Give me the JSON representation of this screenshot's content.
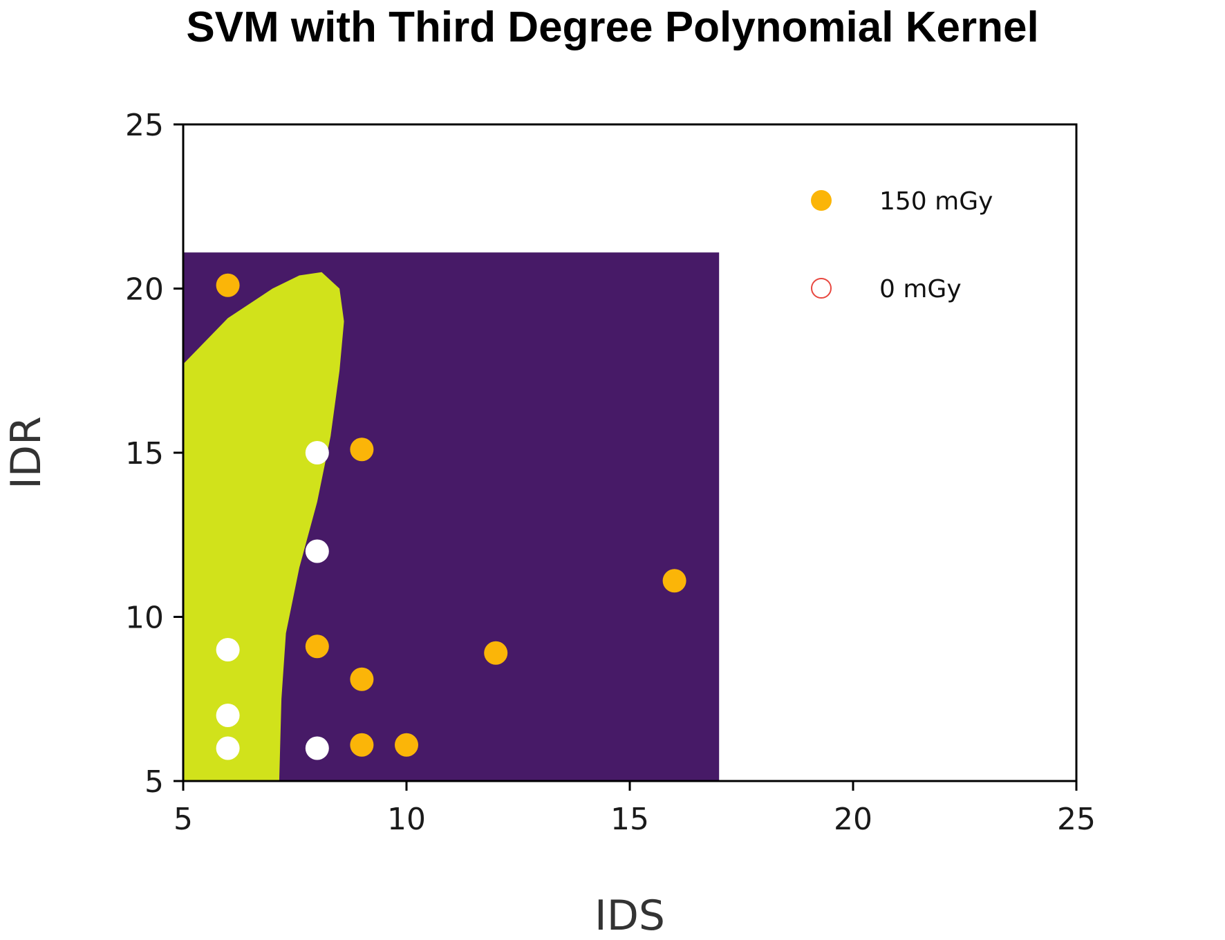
{
  "chart_data": {
    "type": "scatter",
    "title": "SVM with Third Degree Polynomial Kernel",
    "xlabel": "IDS",
    "ylabel": "IDR",
    "xlim": [
      5,
      25
    ],
    "ylim": [
      5,
      25
    ],
    "xticks": [
      "5",
      "10",
      "15",
      "20",
      "25"
    ],
    "yticks": [
      "5",
      "10",
      "15",
      "20",
      "25"
    ],
    "grid": false,
    "legend_position": "top-right",
    "decision_region": {
      "x_range": [
        5,
        17
      ],
      "y_range": [
        5,
        21.1
      ],
      "background_class_color": "#471a67",
      "predicted_class_color": "#d1e21b",
      "predicted_class_boundary": [
        [
          5,
          17.7
        ],
        [
          6,
          19.1
        ],
        [
          7,
          20.0
        ],
        [
          7.6,
          20.4
        ],
        [
          8.1,
          20.5
        ],
        [
          8.5,
          20
        ],
        [
          8.6,
          19
        ],
        [
          8.5,
          17.5
        ],
        [
          8.3,
          15.5
        ],
        [
          8.0,
          13.5
        ],
        [
          7.6,
          11.5
        ],
        [
          7.3,
          9.5
        ],
        [
          7.2,
          7.5
        ],
        [
          7.15,
          5
        ],
        [
          5,
          5
        ]
      ]
    },
    "series": [
      {
        "name": "150 mGy",
        "marker": "filled-circle",
        "color": "#fbb508",
        "points": [
          [
            6,
            20.1
          ],
          [
            9,
            15.1
          ],
          [
            16,
            11.1
          ],
          [
            8,
            9.1
          ],
          [
            12,
            8.9
          ],
          [
            9,
            8.1
          ],
          [
            9,
            6.1
          ],
          [
            10,
            6.1
          ]
        ]
      },
      {
        "name": "0 mGy",
        "marker": "open-circle",
        "color": "#ffffff",
        "legend_edge_color": "#e8473f",
        "points": [
          [
            8,
            15.0
          ],
          [
            8,
            12.0
          ],
          [
            6,
            9.0
          ],
          [
            6,
            7.0
          ],
          [
            6,
            6.0
          ],
          [
            8,
            6.0
          ]
        ]
      }
    ]
  }
}
